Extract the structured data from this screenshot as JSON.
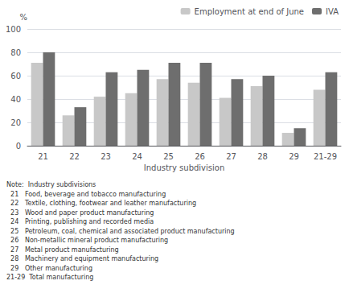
{
  "chart_data": {
    "type": "bar",
    "categories": [
      "21",
      "22",
      "23",
      "24",
      "25",
      "26",
      "27",
      "28",
      "29",
      "21-29"
    ],
    "series": [
      {
        "name": "Employment at end of June",
        "color": "#c8c8c8",
        "values": [
          71,
          26,
          42,
          45,
          57,
          54,
          41,
          51,
          11,
          48
        ]
      },
      {
        "name": "IVA",
        "color": "#6e6e6e",
        "values": [
          80,
          33,
          63,
          65,
          71,
          71,
          57,
          60,
          15,
          63
        ]
      }
    ],
    "xlabel": "Industry subdivision",
    "ylabel": "%",
    "ylim": [
      0,
      100
    ],
    "yticks": [
      0,
      20,
      40,
      60,
      80,
      100
    ],
    "grid": true,
    "legend": "upper right",
    "annotations": [
      "Note:  Industry subdivisions",
      "  21   Food, beverage and tobacco manufacturing",
      "  22   Textile, clothing, footwear and leather manufacturing",
      "  23   Wood and paper product manufacturing",
      "  24   Printing, publishing and recorded media",
      "  25   Petroleum, coal, chemical and associated product manufacturing",
      "  26   Non-metallic mineral product manufacturing",
      "  27   Metal product manufacturing",
      "  28   Machinery and equipment manufacturing",
      "  29   Other manufacturing",
      "21-29  Total manufacturing"
    ]
  }
}
